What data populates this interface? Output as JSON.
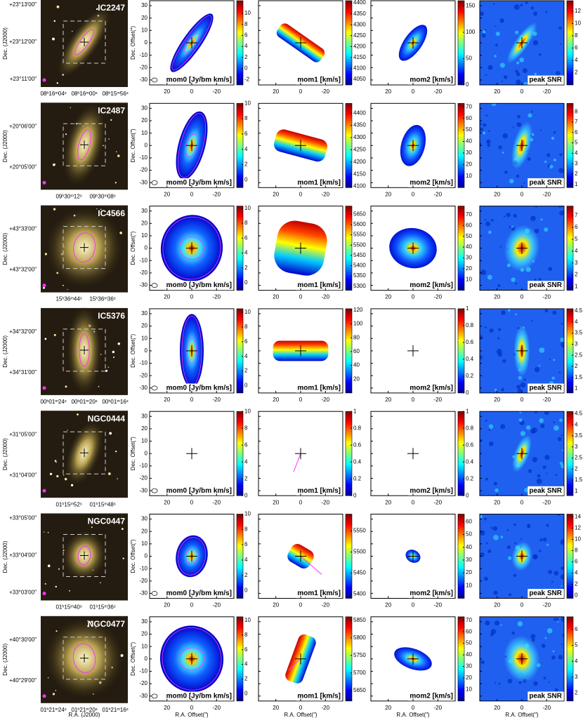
{
  "axes": {
    "x_label": "R.A. Offset(″)",
    "y_label": "Dec. Offset(″)",
    "xlim": [
      34,
      -34
    ],
    "ylim": [
      -34,
      34
    ],
    "xticks": [
      20,
      0,
      -20
    ],
    "yticks": [
      30,
      20,
      10,
      0,
      -10,
      -20,
      -30
    ]
  },
  "optical": {
    "x_label": "R.A. (J2000)",
    "y_label": "Dec. (J2000)"
  },
  "panel_labels": [
    "mom0 [Jy/bm km/s]",
    "mom1 [km/s]",
    "mom2 [km/s]",
    "peak SNR"
  ],
  "rows": [
    {
      "galaxy": "IC2247",
      "dec_ticks": [
        "+23°13′00″",
        "+23°12′00″",
        "+23°11′00″"
      ],
      "ra_ticks": [
        "08ʰ16ᵐ04ˢ",
        "08ʰ16ᵐ00ˢ",
        "08ʰ15ᵐ56ˢ"
      ],
      "colorbars": [
        {
          "lim": [
            -3,
            12.3
          ],
          "ticks": [
            10,
            8,
            6,
            4,
            2,
            0,
            -2
          ]
        },
        {
          "lim": [
            4024,
            4410
          ],
          "ticks": [
            4400,
            4350,
            4300,
            4250,
            4200,
            4150,
            4100,
            4050
          ]
        },
        {
          "lim": [
            0,
            160
          ],
          "ticks": [
            150,
            100,
            50,
            0
          ]
        },
        {
          "lim": [
            0,
            13.7
          ],
          "ticks": [
            12,
            10,
            8,
            6,
            4,
            2
          ]
        }
      ]
    },
    {
      "galaxy": "IC2487",
      "dec_ticks": [
        "+20°06′00″",
        "+20°05′00″"
      ],
      "ra_ticks": [
        "09ʰ30ᵐ12ˢ",
        "09ʰ30ᵐ08ˢ"
      ],
      "colorbars": [
        {
          "lim": [
            -1,
            10
          ],
          "ticks": [
            10,
            8,
            6,
            4,
            2,
            0
          ]
        },
        {
          "lim": [
            4095,
            4440
          ],
          "ticks": [
            4400,
            4350,
            4300,
            4250,
            4200,
            4150,
            4100
          ]
        },
        {
          "lim": [
            0,
            73
          ],
          "ticks": [
            70,
            60,
            50,
            40,
            30,
            20,
            10
          ]
        },
        {
          "lim": [
            0.7,
            8.8
          ],
          "ticks": [
            8,
            7,
            6,
            5,
            4,
            3,
            2,
            1
          ]
        }
      ]
    },
    {
      "galaxy": "IC4566",
      "dec_ticks": [
        "+43°33′00″",
        "+43°32′00″"
      ],
      "ra_ticks": [
        "15ʰ36ᵐ44ˢ",
        "15ʰ36ᵐ36ˢ"
      ],
      "colorbars": [
        {
          "lim": [
            -1,
            10.3
          ],
          "ticks": [
            10,
            8,
            6,
            4,
            2,
            0
          ]
        },
        {
          "lim": [
            5280,
            5690
          ],
          "ticks": [
            5650,
            5600,
            5550,
            5500,
            5450,
            5400,
            5350,
            5300
          ]
        },
        {
          "lim": [
            0,
            78
          ],
          "ticks": [
            70,
            60,
            50,
            40,
            30,
            20,
            10
          ]
        },
        {
          "lim": [
            0.7,
            7.8
          ],
          "ticks": [
            7,
            6,
            5,
            4,
            3,
            2,
            1
          ]
        }
      ]
    },
    {
      "galaxy": "IC5376",
      "dec_ticks": [
        "+34°32′00″",
        "+34°31′00″"
      ],
      "ra_ticks": [
        "00ʰ01ᵐ24ˢ",
        "00ʰ01ᵐ20ˢ",
        "00ʰ01ᵐ16ˢ"
      ],
      "colorbars": [
        {
          "lim": [
            -1,
            10.5
          ],
          "ticks": [
            10,
            8,
            6,
            4,
            2,
            0
          ]
        },
        {
          "lim": [
            0,
            122
          ],
          "ticks": [
            120,
            100,
            80,
            60,
            40,
            20
          ]
        },
        {
          "lim": [
            0,
            1
          ],
          "ticks": [
            1,
            0.8,
            0.6,
            0.4,
            0.2,
            0
          ]
        },
        {
          "lim": [
            0.8,
            4.6
          ],
          "ticks": [
            4.5,
            4,
            3.5,
            3,
            2.5,
            2,
            1.5,
            1
          ]
        }
      ]
    },
    {
      "galaxy": "NGC0444",
      "dec_ticks": [
        "+31°05′00″",
        "+31°04′00″"
      ],
      "ra_ticks": [
        "01ʰ15ᵐ52ˢ",
        "01ʰ15ᵐ48ˢ"
      ],
      "colorbars": [
        {
          "lim": [
            0,
            10
          ],
          "ticks": [
            10,
            8,
            6,
            4,
            2,
            0
          ]
        },
        {
          "lim": [
            0,
            1
          ],
          "ticks": [
            1,
            0.8,
            0.6,
            0.4,
            0.2,
            0
          ]
        },
        {
          "lim": [
            0,
            1
          ],
          "ticks": [
            1,
            0.8,
            0.6,
            0.4,
            0.2,
            0
          ]
        },
        {
          "lim": [
            0.8,
            4.6
          ],
          "ticks": [
            4.5,
            4,
            3.5,
            3,
            2.5,
            2,
            1.5,
            1
          ]
        }
      ]
    },
    {
      "galaxy": "NGC0447",
      "dec_ticks": [
        "+33°05′00″",
        "+33°04′00″",
        "+33°03′00″"
      ],
      "ra_ticks": [
        "01ʰ15ᵐ40ˢ",
        "01ʰ15ᵐ36ˢ"
      ],
      "colorbars": [
        {
          "lim": [
            -1,
            10
          ],
          "ticks": [
            10,
            8,
            6,
            4,
            2,
            0
          ]
        },
        {
          "lim": [
            5390,
            5590
          ],
          "ticks": [
            5550,
            5500,
            5450,
            5400
          ]
        },
        {
          "lim": [
            0,
            66
          ],
          "ticks": [
            60,
            50,
            40,
            30,
            20,
            10
          ]
        },
        {
          "lim": [
            -0.5,
            14.5
          ],
          "ticks": [
            14,
            12,
            10,
            8,
            6,
            4,
            2,
            0
          ]
        }
      ]
    },
    {
      "galaxy": "NGC0477",
      "dec_ticks": [
        "+40°30′00″",
        "+40°29′00″"
      ],
      "ra_ticks": [
        "01ʰ21ᵐ24ˢ",
        "01ʰ21ᵐ20ˢ",
        "01ʰ21ᵐ16ˢ"
      ],
      "colorbars": [
        {
          "lim": [
            -1,
            10.5
          ],
          "ticks": [
            10,
            8,
            6,
            4,
            2,
            0
          ]
        },
        {
          "lim": [
            5620,
            5860
          ],
          "ticks": [
            5850,
            5800,
            5750,
            5700,
            5650
          ]
        },
        {
          "lim": [
            0,
            73
          ],
          "ticks": [
            70,
            60,
            50,
            40,
            30,
            20,
            10
          ]
        },
        {
          "lim": [
            1.5,
            6.8
          ],
          "ticks": [
            6,
            5,
            4,
            3,
            2
          ]
        }
      ]
    }
  ]
}
